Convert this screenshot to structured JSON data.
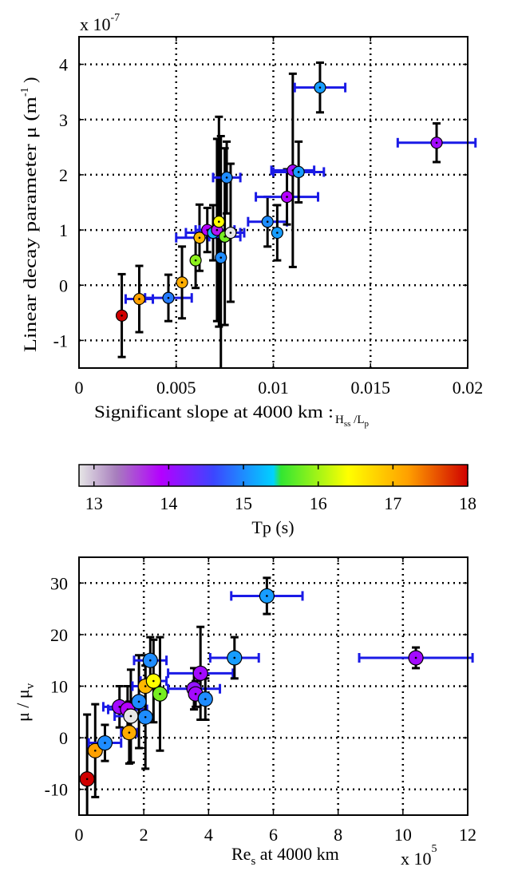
{
  "chart_data": [
    {
      "type": "scatter",
      "title": "",
      "xlabel": "Significant slope at 4000 km : H_ss / L_p",
      "ylabel": "Linear decay parameter μ (m^-1)",
      "xlabel_text": "Significant slope at 4000 km :",
      "xlabel_sym": {
        "h": "H",
        "h_sub": "ss",
        "sep": " /",
        "l": "L",
        "l_sub": "p"
      },
      "ylabel_text": "Linear decay parameter μ (m",
      "ylabel_sup": "-1",
      "ylabel_close": " )",
      "y_multiplier": {
        "base": "x 10",
        "exp": "-7"
      },
      "xlim": [
        0,
        0.02
      ],
      "ylim": [
        -1.5,
        4.5
      ],
      "xticks": [
        0,
        0.005,
        0.01,
        0.015,
        0.02
      ],
      "xtick_labels": [
        "0",
        "0.005",
        "0.01",
        "0.015",
        "0.02"
      ],
      "yticks": [
        -1,
        0,
        1,
        2,
        3,
        4
      ],
      "ytick_labels": [
        "-1",
        "0",
        "1",
        "2",
        "3",
        "4"
      ],
      "grid": true,
      "points": [
        {
          "x": 0.0022,
          "y": -0.55,
          "tp": 18.0,
          "yerr": 0.75,
          "xerr": 0
        },
        {
          "x": 0.0031,
          "y": -0.25,
          "tp": 17.2,
          "yerr": 0.6,
          "xerr": 0.0007
        },
        {
          "x": 0.0046,
          "y": -0.23,
          "tp": 14.9,
          "yerr": 0.42,
          "xerr": 0.0012
        },
        {
          "x": 0.0053,
          "y": 0.05,
          "tp": 17.1,
          "yerr": 0.65,
          "xerr": 0
        },
        {
          "x": 0.006,
          "y": 0.45,
          "tp": 15.9,
          "yerr": 0.5,
          "xerr": 0
        },
        {
          "x": 0.0062,
          "y": 0.86,
          "tp": 17.0,
          "yerr": 0.6,
          "xerr": 0.0012
        },
        {
          "x": 0.0066,
          "y": 1.0,
          "tp": 13.9,
          "yerr": 0.4,
          "xerr": 0.0006
        },
        {
          "x": 0.0069,
          "y": 0.95,
          "tp": 15.2,
          "yerr": 0.5,
          "xerr": 0.0014
        },
        {
          "x": 0.0071,
          "y": 1.0,
          "tp": 13.8,
          "yerr": 1.65,
          "xerr": 0.0009
        },
        {
          "x": 0.0072,
          "y": 1.15,
          "tp": 16.4,
          "yerr": 1.9,
          "xerr": 0
        },
        {
          "x": 0.0073,
          "y": 0.5,
          "tp": 15.0,
          "yerr": 2.2,
          "xerr": 0
        },
        {
          "x": 0.0075,
          "y": 0.88,
          "tp": 15.8,
          "yerr": 1.6,
          "xerr": 0.0008
        },
        {
          "x": 0.0076,
          "y": 1.95,
          "tp": 15.0,
          "yerr": 0.65,
          "xerr": 0.0007
        },
        {
          "x": 0.0078,
          "y": 0.95,
          "tp": 12.8,
          "yerr": 1.25,
          "xerr": 0.0007
        },
        {
          "x": 0.0097,
          "y": 1.15,
          "tp": 15.0,
          "yerr": 0.45,
          "xerr": 0.001
        },
        {
          "x": 0.0102,
          "y": 0.95,
          "tp": 15.1,
          "yerr": 0.5,
          "xerr": 0
        },
        {
          "x": 0.0107,
          "y": 1.6,
          "tp": 13.9,
          "yerr": 0.5,
          "xerr": 0.0016
        },
        {
          "x": 0.011,
          "y": 2.08,
          "tp": 14.0,
          "yerr": 1.75,
          "xerr": 0.0011
        },
        {
          "x": 0.0113,
          "y": 2.05,
          "tp": 15.1,
          "yerr": 0.55,
          "xerr": 0.0013
        },
        {
          "x": 0.0124,
          "y": 3.58,
          "tp": 15.1,
          "yerr": 0.45,
          "xerr": 0.0013
        },
        {
          "x": 0.0184,
          "y": 2.58,
          "tp": 14.0,
          "yerr": 0.35,
          "xerr": 0.002
        }
      ]
    },
    {
      "type": "heatmap",
      "title": "",
      "xlabel": "Tp (s)",
      "xlim": [
        12.8,
        18
      ],
      "xticks": [
        13,
        14,
        15,
        16,
        17,
        18
      ],
      "xtick_labels": [
        "13",
        "14",
        "15",
        "16",
        "17",
        "18"
      ],
      "colorscale": [
        {
          "v": 12.8,
          "c": "#e6e6e6"
        },
        {
          "v": 13.3,
          "c": "#a77dbd"
        },
        {
          "v": 13.9,
          "c": "#b400ff"
        },
        {
          "v": 14.6,
          "c": "#3c46ff"
        },
        {
          "v": 15.4,
          "c": "#00d2ff"
        },
        {
          "v": 15.5,
          "c": "#32e632"
        },
        {
          "v": 16.4,
          "c": "#ffff00"
        },
        {
          "v": 17.2,
          "c": "#ffa000"
        },
        {
          "v": 18.0,
          "c": "#d00000"
        }
      ]
    },
    {
      "type": "scatter",
      "title": "",
      "xlabel": "Re_s at 4000 km",
      "ylabel": "μ / μ_v",
      "xlabel_text": {
        "re": "Re",
        "sub": "s",
        "rest": " at 4000 km"
      },
      "ylabel_text": {
        "mu": "μ / μ",
        "sub": "v"
      },
      "x_multiplier": {
        "base": "x 10",
        "exp": "5"
      },
      "xlim": [
        0,
        12
      ],
      "ylim": [
        -15,
        35
      ],
      "xticks": [
        0,
        2,
        4,
        6,
        8,
        10,
        12
      ],
      "xtick_labels": [
        "0",
        "2",
        "4",
        "6",
        "8",
        "10",
        "12"
      ],
      "yticks": [
        -10,
        0,
        10,
        20,
        30
      ],
      "ytick_labels": [
        "-10",
        "0",
        "10",
        "20",
        "30"
      ],
      "grid": true,
      "points": [
        {
          "x": 0.25,
          "y": -8.0,
          "tp": 18.0,
          "yerr": 12.5,
          "xerr": 0
        },
        {
          "x": 0.5,
          "y": -2.5,
          "tp": 17.2,
          "yerr": 9.0,
          "xerr": 0
        },
        {
          "x": 0.8,
          "y": -1.0,
          "tp": 15.0,
          "yerr": 3.5,
          "xerr": 0.5
        },
        {
          "x": 1.25,
          "y": 6.0,
          "tp": 14.0,
          "yerr": 4.0,
          "xerr": 0.5
        },
        {
          "x": 1.5,
          "y": 5.5,
          "tp": 13.9,
          "yerr": 4.5,
          "xerr": 0.6
        },
        {
          "x": 1.55,
          "y": 1.0,
          "tp": 17.1,
          "yerr": 6.0,
          "xerr": 0.25
        },
        {
          "x": 1.6,
          "y": 4.2,
          "tp": 12.8,
          "yerr": 9.0,
          "xerr": 0.5
        },
        {
          "x": 1.85,
          "y": 7.0,
          "tp": 15.0,
          "yerr": 9.0,
          "xerr": 0
        },
        {
          "x": 2.05,
          "y": 10.0,
          "tp": 17.0,
          "yerr": 6.0,
          "xerr": 0.4
        },
        {
          "x": 2.05,
          "y": 4.0,
          "tp": 15.0,
          "yerr": 10.0,
          "xerr": 0
        },
        {
          "x": 2.2,
          "y": 15.0,
          "tp": 15.0,
          "yerr": 4.5,
          "xerr": 0.5
        },
        {
          "x": 2.3,
          "y": 11.0,
          "tp": 16.4,
          "yerr": 8.0,
          "xerr": 0.4
        },
        {
          "x": 2.5,
          "y": 8.5,
          "tp": 15.8,
          "yerr": 11.0,
          "xerr": 0
        },
        {
          "x": 3.55,
          "y": 9.5,
          "tp": 14.1,
          "yerr": 4.0,
          "xerr": 0.8
        },
        {
          "x": 3.6,
          "y": 8.5,
          "tp": 14.0,
          "yerr": 2.5,
          "xerr": 0
        },
        {
          "x": 3.75,
          "y": 12.5,
          "tp": 14.0,
          "yerr": 9.0,
          "xerr": 1.0
        },
        {
          "x": 3.9,
          "y": 7.5,
          "tp": 15.0,
          "yerr": 4.0,
          "xerr": 0
        },
        {
          "x": 4.8,
          "y": 15.5,
          "tp": 15.1,
          "yerr": 4.0,
          "xerr": 0.75
        },
        {
          "x": 5.8,
          "y": 27.5,
          "tp": 15.1,
          "yerr": 3.5,
          "xerr": 1.1
        },
        {
          "x": 10.4,
          "y": 15.5,
          "tp": 14.0,
          "yerr": 2.0,
          "xerr": 1.75
        }
      ]
    }
  ]
}
